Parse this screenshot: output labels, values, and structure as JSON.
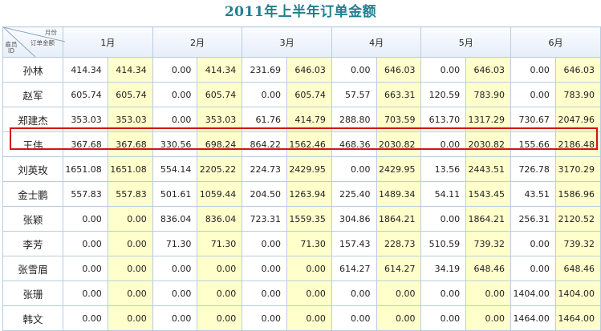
{
  "title": "2011年上半年订单金额",
  "header": {
    "corner_top": "月份",
    "corner_mid": "订单金额",
    "corner_bottom": "雇员ID",
    "months": [
      "1月",
      "2月",
      "3月",
      "4月",
      "5月",
      "6月"
    ]
  },
  "highlight_row": "王伟",
  "highlight_color": "#d21414",
  "rows": [
    {
      "name": "孙林",
      "v": [
        "414.34",
        "414.34",
        "0.00",
        "414.34",
        "231.69",
        "646.03",
        "0.00",
        "646.03",
        "0.00",
        "646.03",
        "0.00",
        "646.03"
      ]
    },
    {
      "name": "赵军",
      "v": [
        "605.74",
        "605.74",
        "0.00",
        "605.74",
        "0.00",
        "605.74",
        "57.57",
        "663.31",
        "120.59",
        "783.90",
        "0.00",
        "783.90"
      ]
    },
    {
      "name": "郑建杰",
      "v": [
        "353.03",
        "353.03",
        "0.00",
        "353.03",
        "61.76",
        "414.79",
        "288.80",
        "703.59",
        "613.70",
        "1317.29",
        "730.67",
        "2047.96"
      ]
    },
    {
      "name": "王伟",
      "v": [
        "367.68",
        "367.68",
        "330.56",
        "698.24",
        "864.22",
        "1562.46",
        "468.36",
        "2030.82",
        "0.00",
        "2030.82",
        "155.66",
        "2186.48"
      ]
    },
    {
      "name": "刘英玫",
      "v": [
        "1651.08",
        "1651.08",
        "554.14",
        "2205.22",
        "224.73",
        "2429.95",
        "0.00",
        "2429.95",
        "13.56",
        "2443.51",
        "726.78",
        "3170.29"
      ]
    },
    {
      "name": "金士鹏",
      "v": [
        "557.83",
        "557.83",
        "501.61",
        "1059.44",
        "204.50",
        "1263.94",
        "225.40",
        "1489.34",
        "54.11",
        "1543.45",
        "43.51",
        "1586.96"
      ]
    },
    {
      "name": "张颖",
      "v": [
        "0.00",
        "0.00",
        "836.04",
        "836.04",
        "723.31",
        "1559.35",
        "304.86",
        "1864.21",
        "0.00",
        "1864.21",
        "256.31",
        "2120.52"
      ]
    },
    {
      "name": "李芳",
      "v": [
        "0.00",
        "0.00",
        "71.30",
        "71.30",
        "0.00",
        "71.30",
        "157.43",
        "228.73",
        "510.59",
        "739.32",
        "0.00",
        "739.32"
      ]
    },
    {
      "name": "张雪眉",
      "v": [
        "0.00",
        "0.00",
        "0.00",
        "0.00",
        "0.00",
        "0.00",
        "614.27",
        "614.27",
        "34.19",
        "648.46",
        "0.00",
        "648.46"
      ]
    },
    {
      "name": "张珊",
      "v": [
        "0.00",
        "0.00",
        "0.00",
        "0.00",
        "0.00",
        "0.00",
        "0.00",
        "0.00",
        "0.00",
        "0.00",
        "1404.00",
        "1404.00"
      ]
    },
    {
      "name": "韩文",
      "v": [
        "0.00",
        "0.00",
        "0.00",
        "0.00",
        "0.00",
        "0.00",
        "0.00",
        "0.00",
        "0.00",
        "0.00",
        "1464.00",
        "1464.00"
      ]
    }
  ]
}
